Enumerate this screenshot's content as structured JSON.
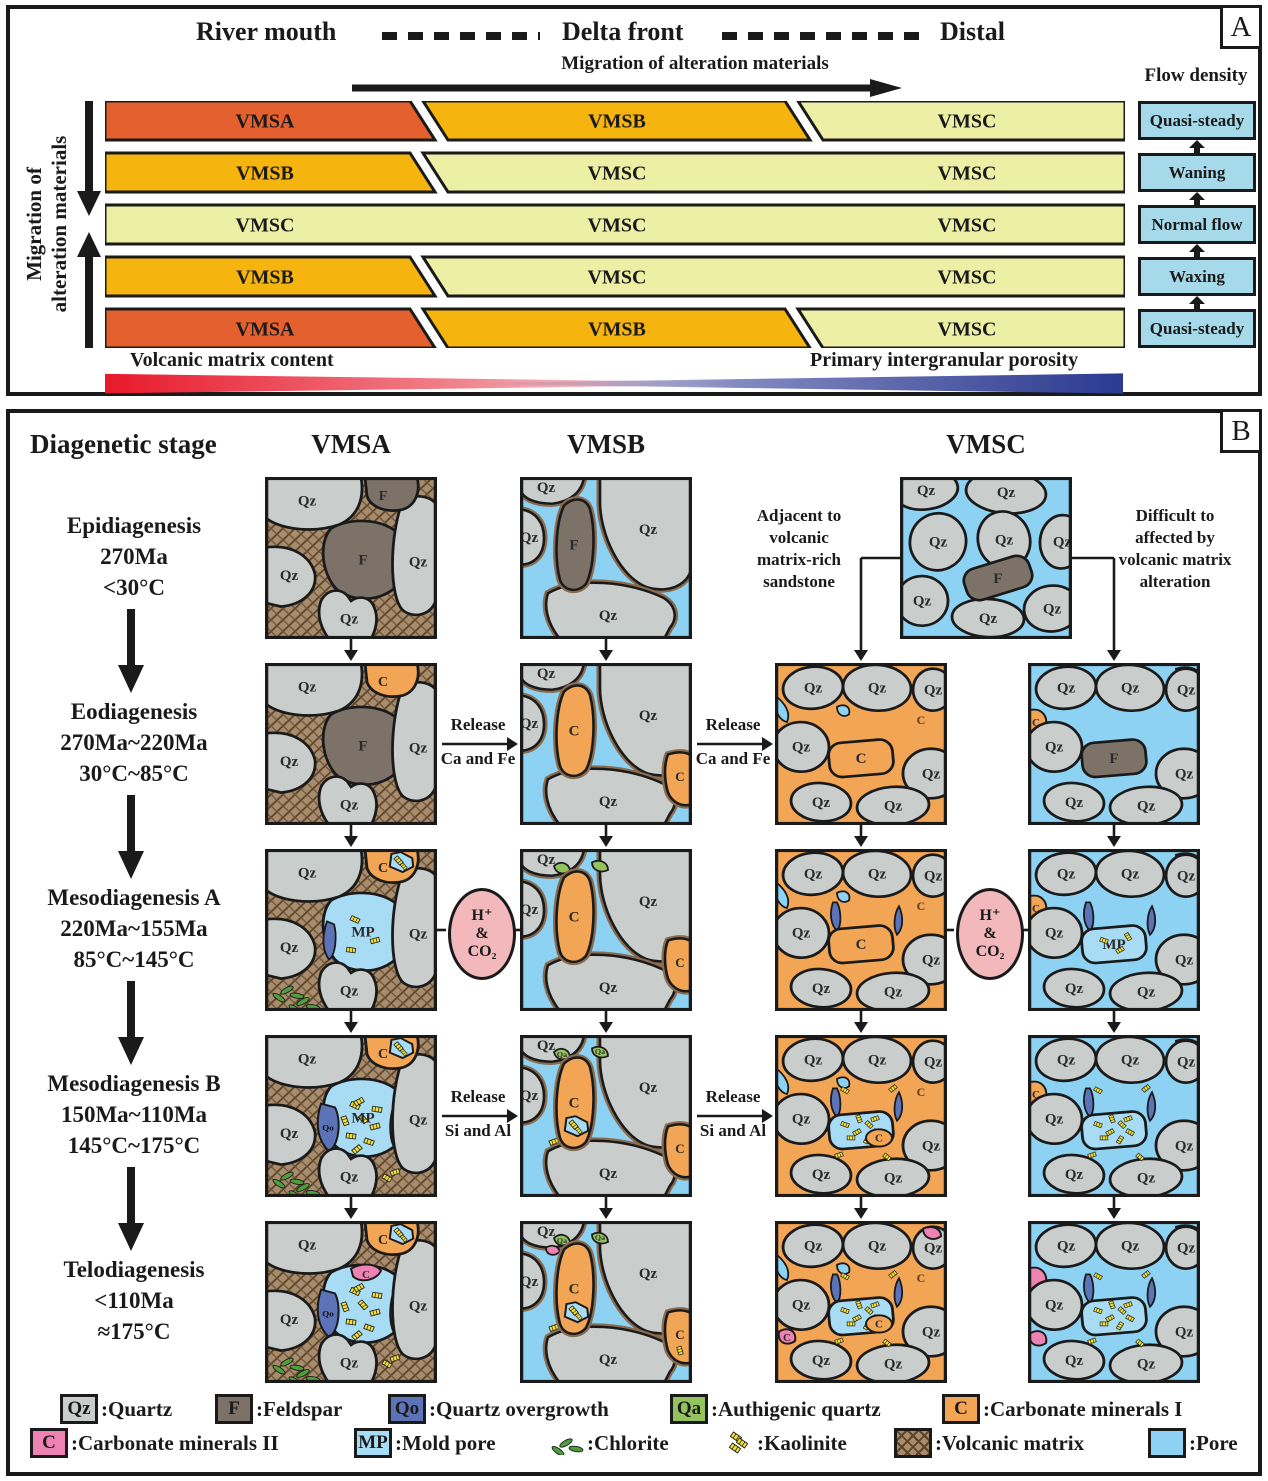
{
  "panelA": {
    "corner_label": "A",
    "top_labels": [
      "River mouth",
      "Delta front",
      "Distal"
    ],
    "migration_arrow_label": "Migration of alteration materials",
    "left_axis_line1": "Migration of",
    "left_axis_line2": "alteration materials",
    "flow_density_label": "Flow density",
    "rows": [
      {
        "type": "three",
        "bands": [
          "VMSA",
          "VMSB",
          "VMSC"
        ],
        "flow": "Quasi-steady"
      },
      {
        "type": "two",
        "bands": [
          "VMSB",
          "VMSC",
          "VMSC"
        ],
        "flow": "Waning"
      },
      {
        "type": "one",
        "bands": [
          "VMSC",
          "VMSC",
          "VMSC"
        ],
        "flow": "Normal flow"
      },
      {
        "type": "two",
        "bands": [
          "VMSB",
          "VMSC",
          "VMSC"
        ],
        "flow": "Waxing"
      },
      {
        "type": "three",
        "bands": [
          "VMSA",
          "VMSB",
          "VMSC"
        ],
        "flow": "Quasi-steady"
      }
    ],
    "bottom_left_label": "Volcanic matrix content",
    "bottom_right_label": "Primary intergranular porosity"
  },
  "panelB": {
    "corner_label": "B",
    "title": "Diagenetic stage",
    "columns": [
      "VMSA",
      "VMSB",
      "VMSC"
    ],
    "stages": [
      {
        "name": "Epidiagenesis",
        "line2": "270Ma",
        "line3": "<30°C"
      },
      {
        "name": "Eodiagenesis",
        "line2": "270Ma~220Ma",
        "line3": "30°C~85°C"
      },
      {
        "name": "Mesodiagenesis A",
        "line2": "220Ma~155Ma",
        "line3": "85°C~145°C"
      },
      {
        "name": "Mesodiagenesis B",
        "line2": "150Ma~110Ma",
        "line3": "145°C~175°C"
      },
      {
        "name": "Telodiagenesis",
        "line2": "<110Ma",
        "line3": "≈175°C"
      }
    ],
    "annotations": {
      "adjacent": [
        "Adjacent to",
        "volcanic",
        "matrix-rich",
        "sandstone"
      ],
      "difficult": [
        "Difficult to",
        "affected by",
        "volcanic matrix",
        "alteration"
      ]
    },
    "release_ca_fe": {
      "top": "Release",
      "bottom": "Ca and Fe"
    },
    "release_si_al": {
      "top": "Release",
      "bottom": "Si and Al"
    },
    "ellipse_lines": [
      "H⁺",
      "&",
      "CO₂"
    ],
    "cells": [
      {
        "id": "epi-vmsa",
        "family": "A",
        "top": {
          "fill": "feldspar",
          "label": "F"
        },
        "center": {
          "fill": "feldspar",
          "label": "F"
        },
        "grains": [
          "Qz",
          "Qz",
          "Qz",
          "Qz"
        ],
        "extras": []
      },
      {
        "id": "epi-vmsb",
        "family": "B",
        "center": {
          "fill": "feldspar",
          "label": "F"
        },
        "grains": [
          "Qz",
          "Qz",
          "Qz",
          "Qz"
        ],
        "extras": []
      },
      {
        "id": "epi-vmsc",
        "family": "C",
        "center": {
          "fill": "feldspar",
          "label": "F"
        },
        "grains": [
          "Qz",
          "Qz",
          "Qz",
          "Qz",
          "Qz",
          "Qz",
          "Qz",
          "Qz"
        ],
        "extras": []
      },
      {
        "id": "eo-vmsa",
        "family": "A",
        "top": {
          "fill": "carb1",
          "label": "C"
        },
        "center": {
          "fill": "feldspar",
          "label": "F"
        },
        "grains": [
          "Qz",
          "Qz",
          "Qz",
          "Qz"
        ],
        "extras": []
      },
      {
        "id": "eo-vmsb",
        "family": "B",
        "center": {
          "fill": "carb1",
          "label": "C"
        },
        "br": {
          "fill": "carb1",
          "label": "C"
        },
        "grains": [
          "Qz",
          "Qz",
          "Qz",
          "Qz"
        ],
        "extras": []
      },
      {
        "id": "eo-vmsc-l",
        "family": "CL",
        "center": {
          "fill": "carb1",
          "label": "C"
        },
        "cemLabel": "C",
        "grains": [
          "Qz",
          "Qz",
          "Qz",
          "Qz",
          "Qz",
          "Qz",
          "Qz"
        ],
        "extras": []
      },
      {
        "id": "eo-vmsc-r",
        "family": "CR",
        "center": {
          "fill": "feldspar",
          "label": "F"
        },
        "p1": {
          "fill": "carb1",
          "label": "C"
        },
        "p2": {
          "fill": "carb1",
          "label": "C"
        },
        "grains": [
          "Qz",
          "Qz",
          "Qz",
          "Qz",
          "Qz",
          "Qz",
          "Qz"
        ],
        "extras": []
      },
      {
        "id": "mesoA-vmsa",
        "family": "A",
        "top": {
          "fill": "carb1",
          "label": "C",
          "chip": true
        },
        "center": {
          "fill": "mp",
          "label": "MP"
        },
        "grains": [
          "Qz",
          "Qz",
          "Qz",
          "Qz"
        ],
        "extras": [
          "qo",
          "kaolFew",
          "chlorite"
        ]
      },
      {
        "id": "mesoA-vmsb",
        "family": "B",
        "center": {
          "fill": "carb1",
          "label": "C"
        },
        "br": {
          "fill": "carb1",
          "label": "C"
        },
        "grains": [
          "Qz",
          "Qz",
          "Qz",
          "Qz"
        ],
        "extras": [
          "qa",
          "kaolFew"
        ]
      },
      {
        "id": "mesoA-vmsc-l",
        "family": "CL",
        "center": {
          "fill": "carb1",
          "label": "C"
        },
        "cemLabel": "C",
        "grains": [
          "Qz",
          "Qz",
          "Qz",
          "Qz",
          "Qz",
          "Qz",
          "Qz"
        ],
        "extras": [
          "qo",
          "kaolFew"
        ]
      },
      {
        "id": "mesoA-vmsc-r",
        "family": "CR",
        "center": {
          "fill": "mp",
          "label": "MP"
        },
        "p1": {
          "fill": "carb1",
          "label": "C"
        },
        "p2": {
          "fill": "carb1",
          "label": "C"
        },
        "grains": [
          "Qz",
          "Qz",
          "Qz",
          "Qz",
          "Qz",
          "Qz",
          "Qz"
        ],
        "extras": [
          "qo",
          "kaolFew"
        ]
      },
      {
        "id": "mesoB-vmsa",
        "family": "A",
        "top": {
          "fill": "carb1",
          "label": "C",
          "chip": true
        },
        "center": {
          "fill": "mp",
          "label": "MP"
        },
        "qoLabels": [
          "Qo",
          "Qo"
        ],
        "grains": [
          "Qz",
          "Qz",
          "Qz",
          "Qz"
        ],
        "extras": [
          "qoBig",
          "kaolMany",
          "chlorite"
        ]
      },
      {
        "id": "mesoB-vmsb",
        "family": "B",
        "center": {
          "fill": "carb1",
          "label": "C",
          "chip": true
        },
        "br": {
          "fill": "carb1",
          "label": "C"
        },
        "qaLabel": "Qa",
        "grains": [
          "Qz",
          "Qz",
          "Qz",
          "Qz"
        ],
        "extras": [
          "qa",
          "kaolMany"
        ]
      },
      {
        "id": "mesoB-vmsc-l",
        "family": "CL",
        "center": {
          "fill": "kaolpore",
          "label": "C"
        },
        "cemLabel": "C",
        "grains": [
          "Qz",
          "Qz",
          "Qz",
          "Qz",
          "Qz",
          "Qz",
          "Qz"
        ],
        "extras": [
          "qo",
          "kaolMany"
        ]
      },
      {
        "id": "mesoB-vmsc-r",
        "family": "CR",
        "center": {
          "fill": "kaolpore"
        },
        "p1": {
          "fill": "carb1",
          "label": "C"
        },
        "p2": {
          "fill": "carb1",
          "label": "C"
        },
        "grains": [
          "Qz",
          "Qz",
          "Qz",
          "Qz",
          "Qz",
          "Qz",
          "Qz"
        ],
        "extras": [
          "qo",
          "kaolMany"
        ]
      },
      {
        "id": "telo-vmsa",
        "family": "A",
        "top": {
          "fill": "carb1",
          "label": "C",
          "chip": true
        },
        "center": {
          "fill": "mp"
        },
        "pinkLabel": "C",
        "qoLabels": [
          "Qo",
          "Qo"
        ],
        "grains": [
          "Qz",
          "Qz",
          "Qz",
          "Qz"
        ],
        "extras": [
          "qoBig",
          "kaolMany",
          "chlorite",
          "pink"
        ]
      },
      {
        "id": "telo-vmsb",
        "family": "B",
        "center": {
          "fill": "carb1",
          "label": "C",
          "chip": true
        },
        "br": {
          "fill": "carb1",
          "label": "C",
          "kaol": true
        },
        "qaLabel": "Qa",
        "grains": [
          "Qz",
          "Qz",
          "Qz",
          "Qz"
        ],
        "extras": [
          "qa",
          "kaolMany",
          "pink"
        ]
      },
      {
        "id": "telo-vmsc-l",
        "family": "CL",
        "center": {
          "fill": "kaolpore",
          "label": "C"
        },
        "cemLabel": "C",
        "pinkLabel": "C",
        "grains": [
          "Qz",
          "Qz",
          "Qz",
          "Qz",
          "Qz",
          "Qz",
          "Qz"
        ],
        "extras": [
          "qo",
          "kaolMany",
          "pink"
        ]
      },
      {
        "id": "telo-vmsc-r",
        "family": "CR",
        "center": {
          "fill": "kaolpore"
        },
        "p1": {
          "fill": "carb2"
        },
        "p2": {
          "fill": "carb1",
          "label": "C"
        },
        "grains": [
          "Qz",
          "Qz",
          "Qz",
          "Qz",
          "Qz",
          "Qz",
          "Qz"
        ],
        "extras": [
          "qo",
          "kaolMany",
          "pink"
        ]
      }
    ]
  },
  "legend": {
    "rows": [
      [
        {
          "key": "Qz",
          "label": ":Quartz",
          "swatch": "quartz",
          "name": "quartz"
        },
        {
          "key": "F",
          "label": ":Feldspar",
          "swatch": "feldspar",
          "name": "feldspar"
        },
        {
          "key": "Qo",
          "label": ":Quartz overgrowth",
          "swatch": "qo",
          "name": "quartz-overgrowth"
        },
        {
          "key": "Qa",
          "label": ":Authigenic quartz",
          "swatch": "qa",
          "name": "authigenic-quartz"
        },
        {
          "key": "C",
          "label": ":Carbonate minerals I",
          "swatch": "carb1",
          "name": "carbonate-minerals-1"
        }
      ],
      [
        {
          "key": "C",
          "label": ":Carbonate minerals II",
          "swatch": "carb2",
          "name": "carbonate-minerals-2"
        },
        {
          "key": "MP",
          "label": ":Mold pore",
          "swatch": "mp",
          "name": "mold-pore"
        },
        {
          "key": "",
          "label": ":Chlorite",
          "icon": "chlorite",
          "name": "chlorite"
        },
        {
          "key": "",
          "label": ":Kaolinite",
          "icon": "kaolinite",
          "name": "kaolinite"
        },
        {
          "key": "",
          "label": ":Volcanic matrix",
          "swatch": "matrix",
          "name": "volcanic-matrix"
        },
        {
          "key": "",
          "label": ":Pore",
          "swatch": "pore",
          "name": "pore"
        }
      ]
    ]
  },
  "colors": {
    "vmsa": "#E4602F",
    "vmsb": "#F6B40F",
    "vmsc": "#EDEFA5",
    "flow_box": "#A6DAEA",
    "grad_red": "#E8192C",
    "grad_blue": "#2B3990",
    "quartz": "#C9CDCB",
    "feldspar": "#7C7268",
    "qo": "#5C73B8",
    "qa": "#94C25E",
    "carb1": "#F3A556",
    "carb2": "#EE82B2",
    "mp": "#A8DCF5",
    "pore": "#8DD2F2",
    "matrix": "#A78C6D",
    "matrix_line": "#5E4426",
    "chlorite": "#4E9E3C",
    "kaolinite": "#F2E03C",
    "ellipse": "#F2B8BC",
    "line": "#1A1A1A",
    "rim": "#8A6B4F"
  }
}
